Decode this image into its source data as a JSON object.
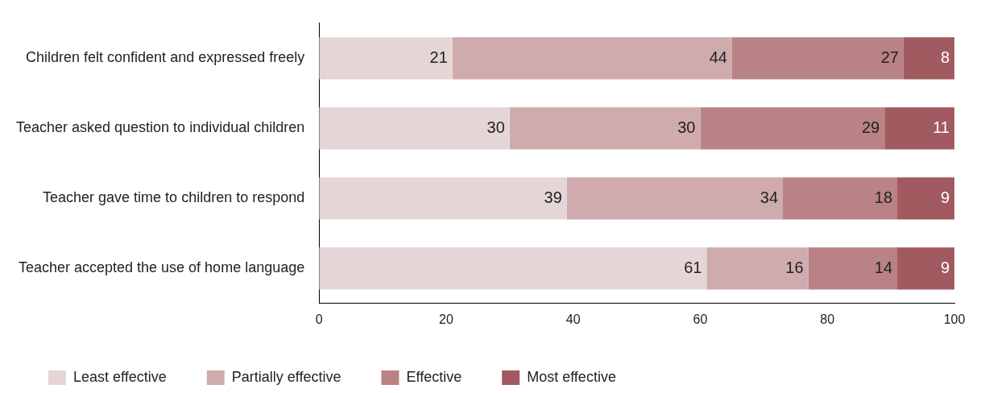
{
  "chart_data": {
    "type": "bar",
    "orientation": "horizontal",
    "stacked": true,
    "data_labels": true,
    "grid": false,
    "legend": "bottom left",
    "categories": [
      "Children felt confident and expressed freely",
      "Teacher asked question to individual children",
      "Teacher gave time to children to respond",
      "Teacher accepted the use of home language"
    ],
    "series": [
      {
        "name": "Least effective",
        "color": "#e5d5d6",
        "values": [
          21,
          30,
          39,
          61
        ]
      },
      {
        "name": "Partially effective",
        "color": "#cfabae",
        "values": [
          44,
          30,
          34,
          16
        ]
      },
      {
        "name": "Effective",
        "color": "#b98385",
        "values": [
          27,
          29,
          18,
          14
        ]
      },
      {
        "name": "Most effective",
        "color": "#a15a5f",
        "values": [
          8,
          11,
          9,
          9
        ]
      }
    ],
    "xlim": [
      0,
      100
    ],
    "xticks": [
      0,
      20,
      40,
      60,
      80,
      100
    ]
  }
}
